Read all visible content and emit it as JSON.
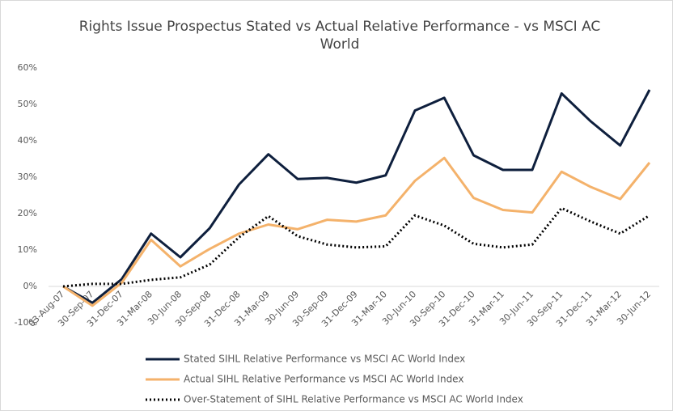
{
  "chart_data": {
    "type": "line",
    "title": "Rights Issue Prospectus Stated vs Actual Relative Performance - vs MSCI AC World",
    "categories": [
      "03-Aug-07",
      "30-Sep-07",
      "31-Dec-07",
      "31-Mar-08",
      "30-Jun-08",
      "30-Sep-08",
      "31-Dec-08",
      "31-Mar-09",
      "30-Jun-09",
      "30-Sep-09",
      "31-Dec-09",
      "31-Mar-10",
      "30-Jun-10",
      "30-Sep-10",
      "31-Dec-10",
      "31-Mar-11",
      "30-Jun-11",
      "30-Sep-11",
      "31-Dec-11",
      "31-Mar-12",
      "30-Jun-12"
    ],
    "series": [
      {
        "name": "Stated SIHL Relative Performance vs MSCI AC World Index",
        "color": "#0e1f3d",
        "line_style": "solid",
        "values": [
          0,
          -4.5,
          2,
          14.5,
          8,
          16,
          28,
          36.3,
          29.5,
          29.8,
          28.5,
          30.5,
          48.3,
          51.8,
          36,
          32,
          32,
          53,
          45.3,
          38.7,
          54
        ]
      },
      {
        "name": "Actual SIHL Relative Performance vs MSCI AC World Index",
        "color": "#f4b26b",
        "line_style": "solid",
        "values": [
          0,
          -5.3,
          1,
          12.8,
          5.5,
          10.3,
          14.5,
          17,
          15.7,
          18.3,
          17.8,
          19.5,
          29,
          35.3,
          24.3,
          21,
          20.3,
          31.5,
          27.3,
          24,
          34
        ]
      },
      {
        "name": "Over-Statement of SIHL Relative Performance vs MSCI AC World Index",
        "color": "#000000",
        "line_style": "dotted",
        "values": [
          0,
          0.7,
          0.7,
          1.8,
          2.5,
          6,
          13.5,
          19.3,
          13.8,
          11.5,
          10.7,
          11,
          19.5,
          16.7,
          11.7,
          10.7,
          11.5,
          21.5,
          17.8,
          14.5,
          19.5
        ]
      }
    ],
    "ylim": [
      -10,
      60
    ],
    "yticks": [
      {
        "value": -10,
        "label": "-10%"
      },
      {
        "value": 0,
        "label": "0%"
      },
      {
        "value": 10,
        "label": "10%"
      },
      {
        "value": 20,
        "label": "20%"
      },
      {
        "value": 30,
        "label": "30%"
      },
      {
        "value": 40,
        "label": "40%"
      },
      {
        "value": 50,
        "label": "50%"
      },
      {
        "value": 60,
        "label": "60%"
      }
    ],
    "grid": false,
    "legend": "bottom"
  }
}
